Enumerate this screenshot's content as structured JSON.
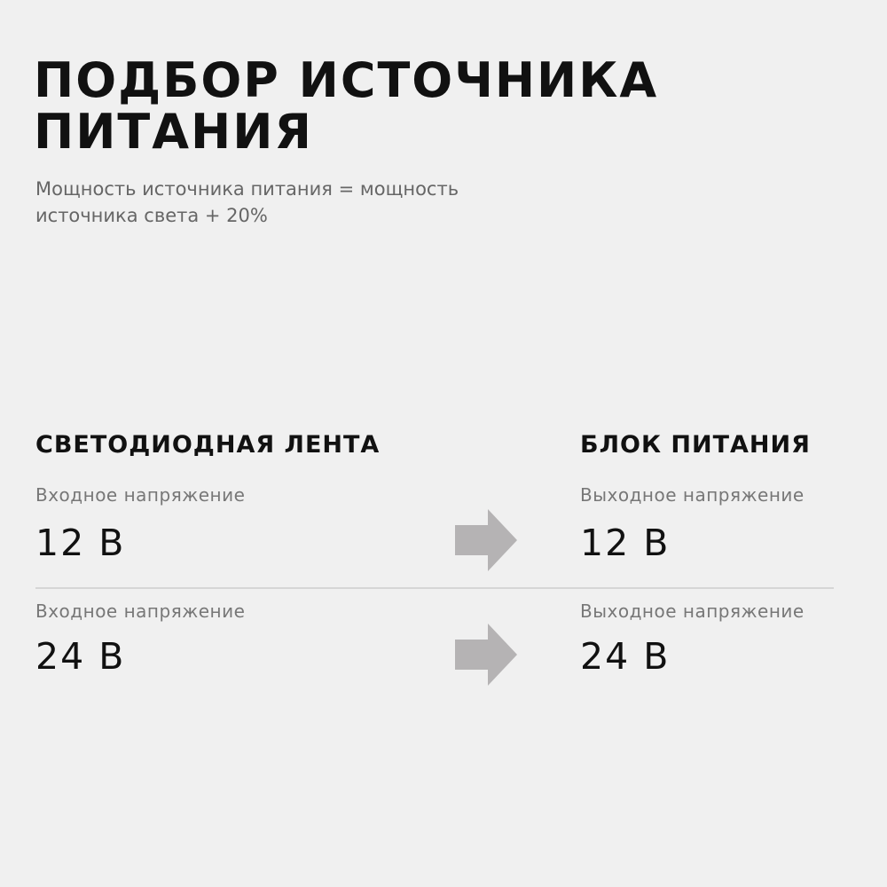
{
  "title": {
    "line1": "ПОДБОР ИСТОЧНИКА",
    "line2": "ПИТАНИЯ"
  },
  "subtitle": {
    "line1": "Мощность источника питания = мощность",
    "line2": "источника света + 20%"
  },
  "left_header": "СВЕТОДИОДНАЯ ЛЕНТА",
  "right_header": "БЛОК ПИТАНИЯ",
  "rows": [
    {
      "input_label": "Входное напряжение",
      "input_value": "12 В",
      "output_label": "Выходное напряжение",
      "output_value": "12 В",
      "arrow_icon": "arrow-right-icon"
    },
    {
      "input_label": "Входное напряжение",
      "input_value": "24 В",
      "output_label": "Выходное напряжение",
      "output_value": "24 В",
      "arrow_icon": "arrow-right-icon"
    }
  ],
  "colors": {
    "background": "#f0f0f0",
    "arrow": "#b5b3b4",
    "divider": "#d6d6d6"
  }
}
